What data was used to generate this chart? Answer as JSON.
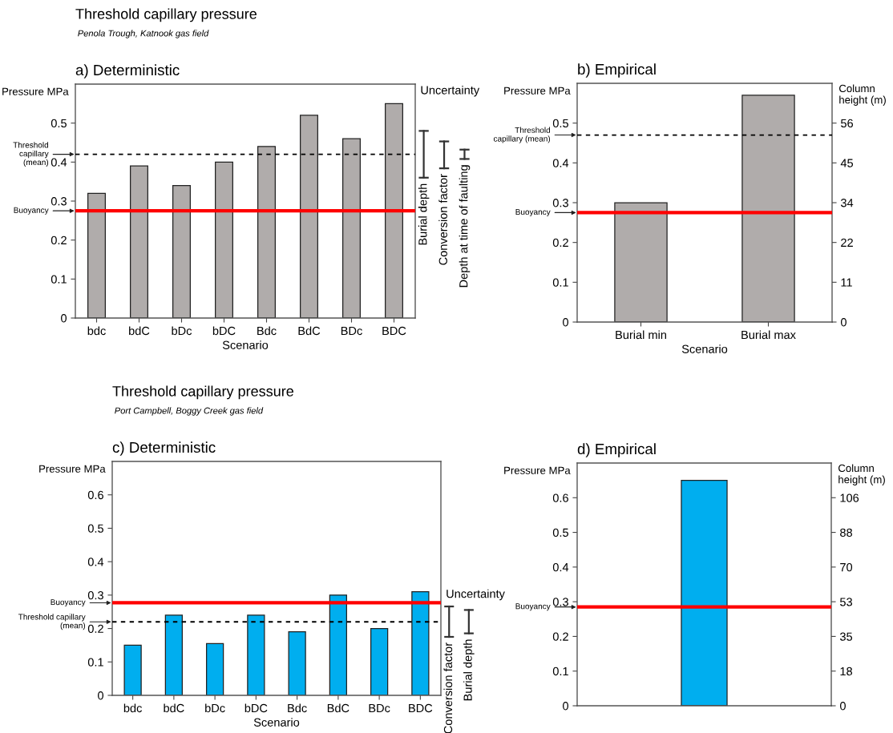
{
  "chart_data": [
    {
      "type": "bar",
      "title": "a) Deterministic",
      "annotations": [
        "Threshold capillary pressure",
        "Penola Trough, Katnook gas field",
        "Uncertainty",
        "Burial depth",
        "Conversion factor",
        "Depth at time of faulting"
      ],
      "ylabel": "Pressure MPa",
      "xlabel": "Scenario",
      "categories": [
        "bdc",
        "bdC",
        "bDc",
        "bDC",
        "Bdc",
        "BdC",
        "BDc",
        "BDC"
      ],
      "values": [
        0.32,
        0.39,
        0.34,
        0.4,
        0.44,
        0.52,
        0.46,
        0.55
      ],
      "color": "#b0acab",
      "ylim": [
        0,
        0.6
      ],
      "yticks": [
        0,
        0.1,
        0.2,
        0.3,
        0.4,
        0.5
      ],
      "ref_lines": [
        {
          "axis": "y",
          "value": 0.42,
          "label": "Threshold\ncapillary\n(mean)",
          "color": "#000000",
          "line_style": "dashed"
        },
        {
          "axis": "y",
          "value": 0.275,
          "label": "Buoyancy",
          "color": "#ff0000",
          "line_style": "solid"
        }
      ],
      "grid": false
    },
    {
      "type": "bar",
      "title": "b) Empirical",
      "ylabel": "Pressure MPa",
      "xlabel": "Scenario",
      "y2label": "Column\nheight (m)",
      "categories": [
        "Burial min",
        "Burial max"
      ],
      "values": [
        0.3,
        0.57
      ],
      "color": "#b0acab",
      "ylim": [
        0,
        0.6
      ],
      "yticks": [
        0,
        0.1,
        0.2,
        0.3,
        0.4,
        0.5
      ],
      "y2lim": [
        0,
        67.2
      ],
      "y2ticks": [
        0,
        {
          "value": 11.2,
          "label": "11"
        },
        {
          "value": 22.4,
          "label": "22"
        },
        {
          "value": 33.6,
          "label": "34"
        },
        {
          "value": 44.8,
          "label": "45"
        },
        56
      ],
      "ref_lines": [
        {
          "axis": "y",
          "value": 0.47,
          "label": "Threshold\ncapillary (mean)",
          "color": "#000000",
          "line_style": "dashed"
        },
        {
          "axis": "y",
          "value": 0.275,
          "label": "Buoyancy",
          "color": "#ff0000",
          "line_style": "solid"
        }
      ],
      "grid": false
    },
    {
      "type": "bar",
      "title": "c) Deterministic",
      "annotations": [
        "Threshold capillary pressure",
        "Port Campbell, Boggy Creek gas field",
        "Uncertainty",
        "Conversion factor",
        "Burial depth"
      ],
      "ylabel": "Pressure MPa",
      "xlabel": "Scenario",
      "categories": [
        "bdc",
        "bdC",
        "bDc",
        "bDC",
        "Bdc",
        "BdC",
        "BDc",
        "BDC"
      ],
      "values": [
        0.15,
        0.24,
        0.155,
        0.24,
        0.19,
        0.3,
        0.2,
        0.31
      ],
      "color": "#00aeef",
      "ylim": [
        0,
        0.7
      ],
      "yticks": [
        0,
        0.1,
        0.2,
        0.3,
        0.4,
        0.5,
        0.6
      ],
      "ref_lines": [
        {
          "axis": "y",
          "value": 0.277,
          "label": "Buoyancy",
          "color": "#ff0000",
          "line_style": "solid"
        },
        {
          "axis": "y",
          "value": 0.22,
          "label": "Threshold capillary\n(mean)",
          "color": "#000000",
          "line_style": "dashed"
        }
      ],
      "grid": false
    },
    {
      "type": "bar",
      "title": "d) Empirical",
      "ylabel": "Pressure MPa",
      "y2label": "Column\nheight (m)",
      "categories": [
        null
      ],
      "values": [
        0.65
      ],
      "color": "#00aeef",
      "ylim": [
        0,
        0.7
      ],
      "yticks": [
        0,
        0.1,
        0.2,
        0.3,
        0.4,
        0.5,
        0.6
      ],
      "y2lim": [
        0,
        123.2
      ],
      "y2ticks": [
        0,
        {
          "value": 17.6,
          "label": "18"
        },
        {
          "value": 35.2,
          "label": "35"
        },
        {
          "value": 52.8,
          "label": "53"
        },
        {
          "value": 70.4,
          "label": "70"
        },
        88,
        {
          "value": 105.6,
          "label": "106"
        }
      ],
      "ref_lines": [
        {
          "axis": "y",
          "value": 0.285,
          "label": "Buoyancy",
          "color": "#ff0000",
          "line_style": "solid"
        }
      ],
      "grid": false
    }
  ]
}
